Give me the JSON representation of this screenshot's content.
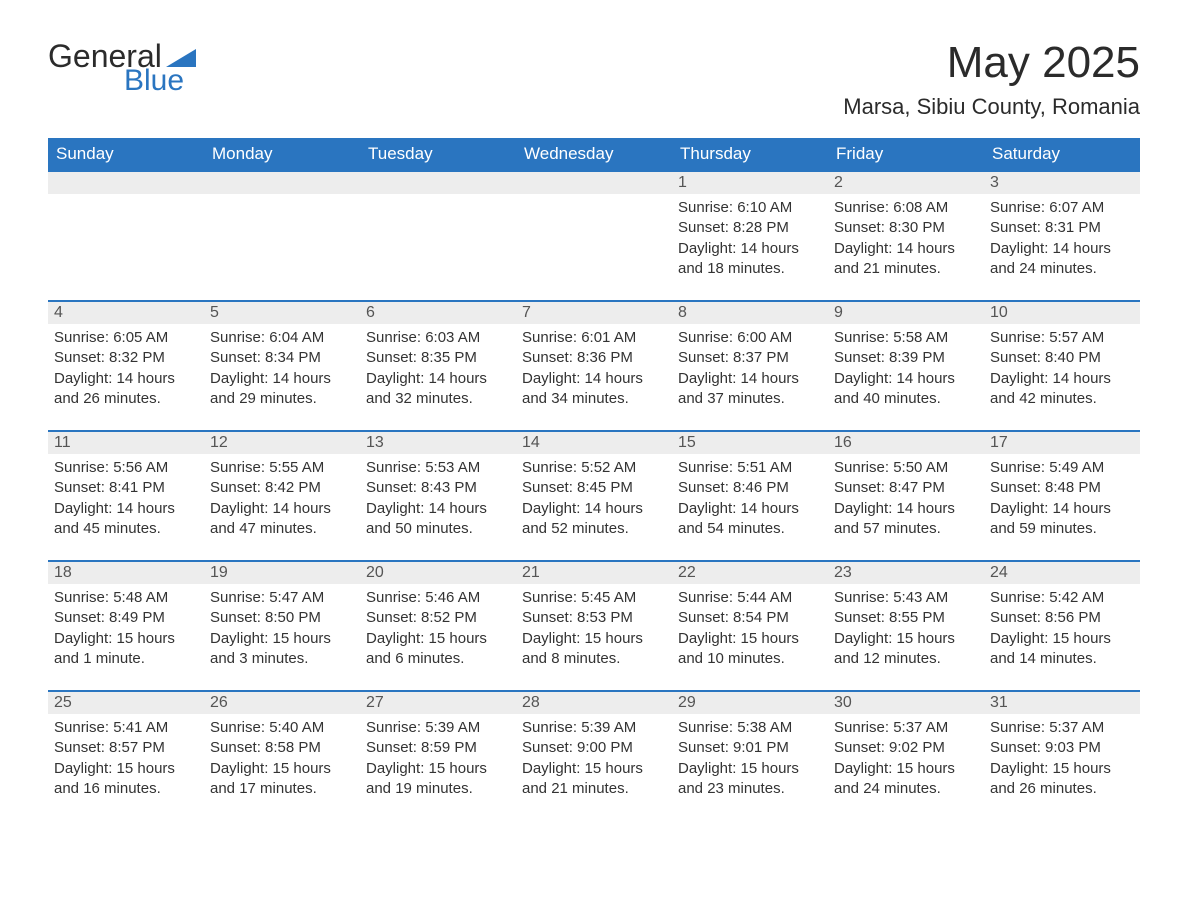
{
  "brand": {
    "text_dark": "General",
    "text_blue": "Blue",
    "shape_color": "#2a75c0"
  },
  "header": {
    "month_title": "May 2025",
    "location": "Marsa, Sibiu County, Romania"
  },
  "calendar": {
    "type": "table",
    "header_bg": "#2a75c0",
    "header_text_color": "#ffffff",
    "row_divider_color": "#2a75c0",
    "daynum_bg": "#ededed",
    "daynum_text_color": "#555555",
    "body_text_color": "#333333",
    "background_color": "#ffffff",
    "font_family": "Arial",
    "header_fontsize": 17,
    "body_fontsize": 15,
    "columns": [
      "Sunday",
      "Monday",
      "Tuesday",
      "Wednesday",
      "Thursday",
      "Friday",
      "Saturday"
    ],
    "weeks": [
      [
        null,
        null,
        null,
        null,
        {
          "day": "1",
          "sunrise": "Sunrise: 6:10 AM",
          "sunset": "Sunset: 8:28 PM",
          "daylight": "Daylight: 14 hours and 18 minutes."
        },
        {
          "day": "2",
          "sunrise": "Sunrise: 6:08 AM",
          "sunset": "Sunset: 8:30 PM",
          "daylight": "Daylight: 14 hours and 21 minutes."
        },
        {
          "day": "3",
          "sunrise": "Sunrise: 6:07 AM",
          "sunset": "Sunset: 8:31 PM",
          "daylight": "Daylight: 14 hours and 24 minutes."
        }
      ],
      [
        {
          "day": "4",
          "sunrise": "Sunrise: 6:05 AM",
          "sunset": "Sunset: 8:32 PM",
          "daylight": "Daylight: 14 hours and 26 minutes."
        },
        {
          "day": "5",
          "sunrise": "Sunrise: 6:04 AM",
          "sunset": "Sunset: 8:34 PM",
          "daylight": "Daylight: 14 hours and 29 minutes."
        },
        {
          "day": "6",
          "sunrise": "Sunrise: 6:03 AM",
          "sunset": "Sunset: 8:35 PM",
          "daylight": "Daylight: 14 hours and 32 minutes."
        },
        {
          "day": "7",
          "sunrise": "Sunrise: 6:01 AM",
          "sunset": "Sunset: 8:36 PM",
          "daylight": "Daylight: 14 hours and 34 minutes."
        },
        {
          "day": "8",
          "sunrise": "Sunrise: 6:00 AM",
          "sunset": "Sunset: 8:37 PM",
          "daylight": "Daylight: 14 hours and 37 minutes."
        },
        {
          "day": "9",
          "sunrise": "Sunrise: 5:58 AM",
          "sunset": "Sunset: 8:39 PM",
          "daylight": "Daylight: 14 hours and 40 minutes."
        },
        {
          "day": "10",
          "sunrise": "Sunrise: 5:57 AM",
          "sunset": "Sunset: 8:40 PM",
          "daylight": "Daylight: 14 hours and 42 minutes."
        }
      ],
      [
        {
          "day": "11",
          "sunrise": "Sunrise: 5:56 AM",
          "sunset": "Sunset: 8:41 PM",
          "daylight": "Daylight: 14 hours and 45 minutes."
        },
        {
          "day": "12",
          "sunrise": "Sunrise: 5:55 AM",
          "sunset": "Sunset: 8:42 PM",
          "daylight": "Daylight: 14 hours and 47 minutes."
        },
        {
          "day": "13",
          "sunrise": "Sunrise: 5:53 AM",
          "sunset": "Sunset: 8:43 PM",
          "daylight": "Daylight: 14 hours and 50 minutes."
        },
        {
          "day": "14",
          "sunrise": "Sunrise: 5:52 AM",
          "sunset": "Sunset: 8:45 PM",
          "daylight": "Daylight: 14 hours and 52 minutes."
        },
        {
          "day": "15",
          "sunrise": "Sunrise: 5:51 AM",
          "sunset": "Sunset: 8:46 PM",
          "daylight": "Daylight: 14 hours and 54 minutes."
        },
        {
          "day": "16",
          "sunrise": "Sunrise: 5:50 AM",
          "sunset": "Sunset: 8:47 PM",
          "daylight": "Daylight: 14 hours and 57 minutes."
        },
        {
          "day": "17",
          "sunrise": "Sunrise: 5:49 AM",
          "sunset": "Sunset: 8:48 PM",
          "daylight": "Daylight: 14 hours and 59 minutes."
        }
      ],
      [
        {
          "day": "18",
          "sunrise": "Sunrise: 5:48 AM",
          "sunset": "Sunset: 8:49 PM",
          "daylight": "Daylight: 15 hours and 1 minute."
        },
        {
          "day": "19",
          "sunrise": "Sunrise: 5:47 AM",
          "sunset": "Sunset: 8:50 PM",
          "daylight": "Daylight: 15 hours and 3 minutes."
        },
        {
          "day": "20",
          "sunrise": "Sunrise: 5:46 AM",
          "sunset": "Sunset: 8:52 PM",
          "daylight": "Daylight: 15 hours and 6 minutes."
        },
        {
          "day": "21",
          "sunrise": "Sunrise: 5:45 AM",
          "sunset": "Sunset: 8:53 PM",
          "daylight": "Daylight: 15 hours and 8 minutes."
        },
        {
          "day": "22",
          "sunrise": "Sunrise: 5:44 AM",
          "sunset": "Sunset: 8:54 PM",
          "daylight": "Daylight: 15 hours and 10 minutes."
        },
        {
          "day": "23",
          "sunrise": "Sunrise: 5:43 AM",
          "sunset": "Sunset: 8:55 PM",
          "daylight": "Daylight: 15 hours and 12 minutes."
        },
        {
          "day": "24",
          "sunrise": "Sunrise: 5:42 AM",
          "sunset": "Sunset: 8:56 PM",
          "daylight": "Daylight: 15 hours and 14 minutes."
        }
      ],
      [
        {
          "day": "25",
          "sunrise": "Sunrise: 5:41 AM",
          "sunset": "Sunset: 8:57 PM",
          "daylight": "Daylight: 15 hours and 16 minutes."
        },
        {
          "day": "26",
          "sunrise": "Sunrise: 5:40 AM",
          "sunset": "Sunset: 8:58 PM",
          "daylight": "Daylight: 15 hours and 17 minutes."
        },
        {
          "day": "27",
          "sunrise": "Sunrise: 5:39 AM",
          "sunset": "Sunset: 8:59 PM",
          "daylight": "Daylight: 15 hours and 19 minutes."
        },
        {
          "day": "28",
          "sunrise": "Sunrise: 5:39 AM",
          "sunset": "Sunset: 9:00 PM",
          "daylight": "Daylight: 15 hours and 21 minutes."
        },
        {
          "day": "29",
          "sunrise": "Sunrise: 5:38 AM",
          "sunset": "Sunset: 9:01 PM",
          "daylight": "Daylight: 15 hours and 23 minutes."
        },
        {
          "day": "30",
          "sunrise": "Sunrise: 5:37 AM",
          "sunset": "Sunset: 9:02 PM",
          "daylight": "Daylight: 15 hours and 24 minutes."
        },
        {
          "day": "31",
          "sunrise": "Sunrise: 5:37 AM",
          "sunset": "Sunset: 9:03 PM",
          "daylight": "Daylight: 15 hours and 26 minutes."
        }
      ]
    ]
  }
}
